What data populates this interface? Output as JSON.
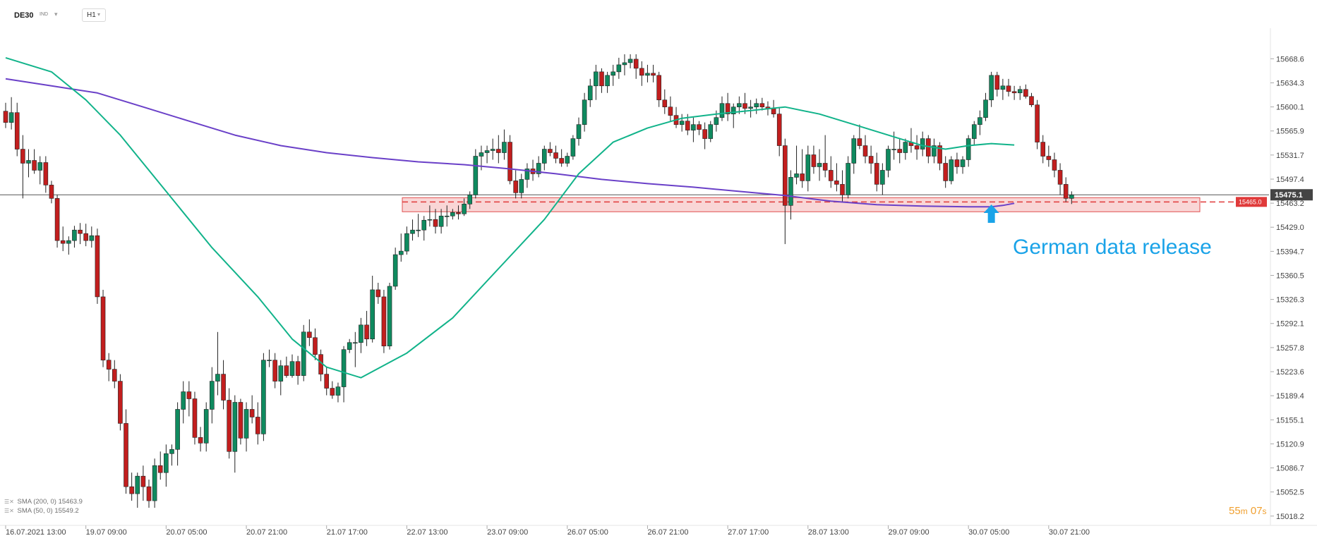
{
  "header": {
    "symbol": "DE30",
    "market": "IND",
    "timeframe": "H1"
  },
  "indicators": [
    {
      "label": "SMA (200, 0)",
      "value": "15463.9",
      "color": "#6a40c8"
    },
    {
      "label": "SMA (50, 0)",
      "value": "15549.2",
      "color": "#11b38a"
    }
  ],
  "timer": {
    "minutes": "55",
    "m": "m",
    "seconds": "07",
    "s": "s"
  },
  "annotation": {
    "text": "German data release",
    "color": "#1aa3e8"
  },
  "colors": {
    "bull": "#0f8a5f",
    "bear": "#c21e1e",
    "zone_fill": "#f7c8c8",
    "zone_border": "#e05050",
    "level_line": "#e03a3a",
    "price_line": "#555555"
  },
  "chart_data": {
    "type": "candlestick",
    "title": "",
    "ylim": [
      15012,
      15700
    ],
    "y_ticks": [
      "15668.6",
      "15634.3",
      "15600.1",
      "15565.9",
      "15531.7",
      "15497.4",
      "15463.2",
      "15429.0",
      "15394.7",
      "15360.5",
      "15326.3",
      "15292.1",
      "15257.8",
      "15223.6",
      "15189.4",
      "15155.1",
      "15120.9",
      "15086.7",
      "15052.5",
      "15018.2"
    ],
    "x_labels": [
      {
        "label": "16.07.2021  13:00",
        "index": 0
      },
      {
        "label": "19.07  09:00",
        "index": 14
      },
      {
        "label": "20.07  05:00",
        "index": 28
      },
      {
        "label": "20.07  21:00",
        "index": 42
      },
      {
        "label": "21.07  17:00",
        "index": 56
      },
      {
        "label": "22.07  13:00",
        "index": 70
      },
      {
        "label": "23.07  09:00",
        "index": 84
      },
      {
        "label": "26.07  05:00",
        "index": 98
      },
      {
        "label": "26.07  21:00",
        "index": 112
      },
      {
        "label": "27.07  17:00",
        "index": 126
      },
      {
        "label": "28.07  13:00",
        "index": 140
      },
      {
        "label": "29.07  09:00",
        "index": 154
      },
      {
        "label": "30.07  05:00",
        "index": 168
      },
      {
        "label": "30.07  21:00",
        "index": 182
      }
    ],
    "current_price": "15475.1",
    "level": "15465.0",
    "zone": [
      15451,
      15471
    ],
    "annotation_index": 172,
    "ohlc": [
      [
        15594,
        15606,
        15570,
        15578
      ],
      [
        15578,
        15614,
        15568,
        15592
      ],
      [
        15592,
        15606,
        15530,
        15540
      ],
      [
        15540,
        15560,
        15470,
        15520
      ],
      [
        15520,
        15540,
        15500,
        15524
      ],
      [
        15524,
        15540,
        15505,
        15510
      ],
      [
        15510,
        15530,
        15490,
        15521
      ],
      [
        15521,
        15530,
        15478,
        15489
      ],
      [
        15489,
        15495,
        15463,
        15470
      ],
      [
        15470,
        15475,
        15400,
        15410
      ],
      [
        15410,
        15430,
        15395,
        15406
      ],
      [
        15406,
        15416,
        15390,
        15410
      ],
      [
        15410,
        15431,
        15400,
        15425
      ],
      [
        15425,
        15435,
        15405,
        15420
      ],
      [
        15420,
        15434,
        15402,
        15410
      ],
      [
        15410,
        15430,
        15400,
        15417
      ],
      [
        15417,
        15427,
        15320,
        15330
      ],
      [
        15330,
        15340,
        15230,
        15240
      ],
      [
        15240,
        15250,
        15210,
        15227
      ],
      [
        15227,
        15240,
        15200,
        15210
      ],
      [
        15210,
        15220,
        15140,
        15150
      ],
      [
        15150,
        15170,
        15050,
        15060
      ],
      [
        15060,
        15080,
        15040,
        15050
      ],
      [
        15050,
        15080,
        15030,
        15075
      ],
      [
        15075,
        15090,
        15040,
        15060
      ],
      [
        15060,
        15070,
        15030,
        15040
      ],
      [
        15040,
        15100,
        15030,
        15090
      ],
      [
        15090,
        15110,
        15070,
        15080
      ],
      [
        15080,
        15120,
        15060,
        15107
      ],
      [
        15107,
        15120,
        15090,
        15113
      ],
      [
        15113,
        15180,
        15090,
        15170
      ],
      [
        15170,
        15210,
        15150,
        15195
      ],
      [
        15195,
        15210,
        15160,
        15185
      ],
      [
        15185,
        15195,
        15120,
        15130
      ],
      [
        15130,
        15145,
        15110,
        15122
      ],
      [
        15122,
        15180,
        15110,
        15170
      ],
      [
        15170,
        15230,
        15150,
        15210
      ],
      [
        15210,
        15280,
        15190,
        15220
      ],
      [
        15220,
        15240,
        15170,
        15183
      ],
      [
        15183,
        15200,
        15100,
        15110
      ],
      [
        15110,
        15190,
        15080,
        15180
      ],
      [
        15180,
        15185,
        15120,
        15129
      ],
      [
        15129,
        15180,
        15110,
        15170
      ],
      [
        15170,
        15190,
        15150,
        15159
      ],
      [
        15159,
        15180,
        15120,
        15135
      ],
      [
        15135,
        15250,
        15125,
        15240
      ],
      [
        15240,
        15255,
        15230,
        15240
      ],
      [
        15240,
        15250,
        15200,
        15210
      ],
      [
        15210,
        15240,
        15190,
        15232
      ],
      [
        15232,
        15245,
        15215,
        15218
      ],
      [
        15218,
        15248,
        15215,
        15238
      ],
      [
        15238,
        15246,
        15205,
        15218
      ],
      [
        15218,
        15290,
        15210,
        15280
      ],
      [
        15280,
        15298,
        15260,
        15272
      ],
      [
        15272,
        15285,
        15240,
        15248
      ],
      [
        15248,
        15255,
        15210,
        15220
      ],
      [
        15220,
        15231,
        15190,
        15200
      ],
      [
        15200,
        15210,
        15185,
        15190
      ],
      [
        15190,
        15208,
        15180,
        15202
      ],
      [
        15202,
        15260,
        15180,
        15255
      ],
      [
        15255,
        15270,
        15250,
        15265
      ],
      [
        15265,
        15280,
        15230,
        15265
      ],
      [
        15265,
        15300,
        15250,
        15290
      ],
      [
        15290,
        15310,
        15260,
        15270
      ],
      [
        15270,
        15360,
        15265,
        15340
      ],
      [
        15340,
        15350,
        15320,
        15330
      ],
      [
        15330,
        15340,
        15250,
        15260
      ],
      [
        15260,
        15350,
        15255,
        15345
      ],
      [
        15345,
        15400,
        15340,
        15390
      ],
      [
        15390,
        15420,
        15380,
        15395
      ],
      [
        15395,
        15430,
        15390,
        15420
      ],
      [
        15420,
        15440,
        15410,
        15425
      ],
      [
        15425,
        15448,
        15415,
        15425
      ],
      [
        15425,
        15445,
        15410,
        15439
      ],
      [
        15439,
        15460,
        15430,
        15440
      ],
      [
        15440,
        15455,
        15420,
        15430
      ],
      [
        15430,
        15455,
        15420,
        15445
      ],
      [
        15445,
        15460,
        15430,
        15445
      ],
      [
        15445,
        15455,
        15440,
        15450
      ],
      [
        15450,
        15460,
        15440,
        15448
      ],
      [
        15448,
        15470,
        15445,
        15462
      ],
      [
        15462,
        15480,
        15455,
        15475
      ],
      [
        15475,
        15540,
        15470,
        15530
      ],
      [
        15530,
        15545,
        15510,
        15535
      ],
      [
        15535,
        15545,
        15520,
        15538
      ],
      [
        15538,
        15555,
        15525,
        15540
      ],
      [
        15540,
        15560,
        15520,
        15535
      ],
      [
        15535,
        15568,
        15525,
        15550
      ],
      [
        15550,
        15560,
        15490,
        15495
      ],
      [
        15495,
        15510,
        15470,
        15478
      ],
      [
        15478,
        15505,
        15470,
        15497
      ],
      [
        15497,
        15520,
        15485,
        15512
      ],
      [
        15512,
        15525,
        15495,
        15505
      ],
      [
        15505,
        15530,
        15500,
        15520
      ],
      [
        15520,
        15545,
        15510,
        15540
      ],
      [
        15540,
        15550,
        15530,
        15535
      ],
      [
        15535,
        15545,
        15520,
        15527
      ],
      [
        15527,
        15540,
        15515,
        15520
      ],
      [
        15520,
        15535,
        15515,
        15530
      ],
      [
        15530,
        15560,
        15525,
        15555
      ],
      [
        15555,
        15585,
        15545,
        15575
      ],
      [
        15575,
        15620,
        15565,
        15610
      ],
      [
        15610,
        15640,
        15600,
        15630
      ],
      [
        15630,
        15660,
        15610,
        15650
      ],
      [
        15650,
        15655,
        15620,
        15630
      ],
      [
        15630,
        15650,
        15620,
        15645
      ],
      [
        15645,
        15660,
        15630,
        15650
      ],
      [
        15650,
        15670,
        15640,
        15660
      ],
      [
        15660,
        15675,
        15645,
        15663
      ],
      [
        15663,
        15675,
        15655,
        15668
      ],
      [
        15668,
        15675,
        15640,
        15655
      ],
      [
        15655,
        15665,
        15630,
        15645
      ],
      [
        15645,
        15660,
        15635,
        15648
      ],
      [
        15648,
        15660,
        15635,
        15645
      ],
      [
        15645,
        15650,
        15600,
        15610
      ],
      [
        15610,
        15625,
        15590,
        15600
      ],
      [
        15600,
        15615,
        15580,
        15588
      ],
      [
        15588,
        15600,
        15570,
        15575
      ],
      [
        15575,
        15590,
        15565,
        15580
      ],
      [
        15580,
        15590,
        15560,
        15567
      ],
      [
        15567,
        15585,
        15550,
        15575
      ],
      [
        15575,
        15580,
        15560,
        15568
      ],
      [
        15568,
        15578,
        15540,
        15555
      ],
      [
        15555,
        15580,
        15550,
        15575
      ],
      [
        15575,
        15595,
        15565,
        15585
      ],
      [
        15585,
        15615,
        15580,
        15605
      ],
      [
        15605,
        15620,
        15580,
        15590
      ],
      [
        15590,
        15605,
        15570,
        15600
      ],
      [
        15600,
        15615,
        15590,
        15605
      ],
      [
        15605,
        15620,
        15590,
        15598
      ],
      [
        15598,
        15610,
        15585,
        15600
      ],
      [
        15600,
        15612,
        15590,
        15605
      ],
      [
        15605,
        15613,
        15595,
        15600
      ],
      [
        15600,
        15608,
        15588,
        15598
      ],
      [
        15598,
        15610,
        15585,
        15590
      ],
      [
        15590,
        15600,
        15530,
        15545
      ],
      [
        15545,
        15555,
        15405,
        15460
      ],
      [
        15460,
        15510,
        15440,
        15500
      ],
      [
        15500,
        15545,
        15490,
        15505
      ],
      [
        15505,
        15540,
        15485,
        15495
      ],
      [
        15495,
        15545,
        15480,
        15532
      ],
      [
        15532,
        15545,
        15505,
        15515
      ],
      [
        15515,
        15540,
        15495,
        15520
      ],
      [
        15520,
        15560,
        15500,
        15510
      ],
      [
        15510,
        15530,
        15485,
        15495
      ],
      [
        15495,
        15520,
        15480,
        15490
      ],
      [
        15490,
        15510,
        15465,
        15475
      ],
      [
        15475,
        15530,
        15470,
        15520
      ],
      [
        15520,
        15560,
        15505,
        15555
      ],
      [
        15555,
        15575,
        15540,
        15545
      ],
      [
        15545,
        15560,
        15520,
        15530
      ],
      [
        15530,
        15545,
        15505,
        15520
      ],
      [
        15520,
        15535,
        15480,
        15490
      ],
      [
        15490,
        15520,
        15475,
        15510
      ],
      [
        15510,
        15545,
        15500,
        15540
      ],
      [
        15540,
        15565,
        15525,
        15540
      ],
      [
        15540,
        15555,
        15520,
        15535
      ],
      [
        15535,
        15555,
        15525,
        15550
      ],
      [
        15550,
        15570,
        15535,
        15545
      ],
      [
        15545,
        15560,
        15525,
        15540
      ],
      [
        15540,
        15565,
        15530,
        15555
      ],
      [
        15555,
        15560,
        15520,
        15530
      ],
      [
        15530,
        15555,
        15520,
        15545
      ],
      [
        15545,
        15550,
        15510,
        15520
      ],
      [
        15520,
        15530,
        15485,
        15495
      ],
      [
        15495,
        15530,
        15490,
        15525
      ],
      [
        15525,
        15535,
        15505,
        15515
      ],
      [
        15515,
        15530,
        15505,
        15525
      ],
      [
        15525,
        15560,
        15515,
        15555
      ],
      [
        15555,
        15580,
        15545,
        15575
      ],
      [
        15575,
        15595,
        15560,
        15585
      ],
      [
        15585,
        15620,
        15580,
        15610
      ],
      [
        15610,
        15650,
        15600,
        15645
      ],
      [
        15645,
        15650,
        15615,
        15625
      ],
      [
        15625,
        15640,
        15610,
        15630
      ],
      [
        15630,
        15640,
        15615,
        15622
      ],
      [
        15622,
        15630,
        15610,
        15620
      ],
      [
        15620,
        15630,
        15610,
        15625
      ],
      [
        15625,
        15632,
        15612,
        15615
      ],
      [
        15615,
        15620,
        15600,
        15603
      ],
      [
        15603,
        15610,
        15540,
        15550
      ],
      [
        15550,
        15560,
        15520,
        15530
      ],
      [
        15530,
        15545,
        15515,
        15525
      ],
      [
        15525,
        15535,
        15500,
        15510
      ],
      [
        15510,
        15520,
        15475,
        15490
      ],
      [
        15490,
        15500,
        15465,
        15470
      ],
      [
        15470,
        15480,
        15462,
        15475
      ]
    ],
    "series": [
      {
        "name": "SMA (200, 0)",
        "values": [
          15640,
          15630,
          15620,
          15600,
          15580,
          15560,
          15545,
          15535,
          15528,
          15522,
          15518,
          15512,
          15505,
          15497,
          15491,
          15486,
          15480,
          15474,
          15466,
          15461,
          15459,
          15458,
          15458,
          15460,
          15463
        ],
        "x_index": [
          0,
          8,
          16,
          24,
          32,
          40,
          48,
          56,
          64,
          72,
          80,
          88,
          96,
          104,
          112,
          120,
          128,
          136,
          144,
          152,
          160,
          168,
          172,
          174,
          176
        ]
      },
      {
        "name": "SMA (50, 0)",
        "values": [
          15670,
          15650,
          15610,
          15560,
          15480,
          15400,
          15330,
          15270,
          15230,
          15215,
          15250,
          15300,
          15370,
          15440,
          15505,
          15550,
          15570,
          15584,
          15590,
          15595,
          15600,
          15590,
          15575,
          15560,
          15545,
          15540,
          15545,
          15548,
          15546
        ],
        "x_index": [
          0,
          8,
          14,
          20,
          28,
          36,
          44,
          50,
          56,
          62,
          70,
          78,
          86,
          94,
          100,
          106,
          112,
          118,
          124,
          130,
          136,
          142,
          148,
          154,
          160,
          164,
          168,
          172,
          176
        ]
      }
    ]
  }
}
